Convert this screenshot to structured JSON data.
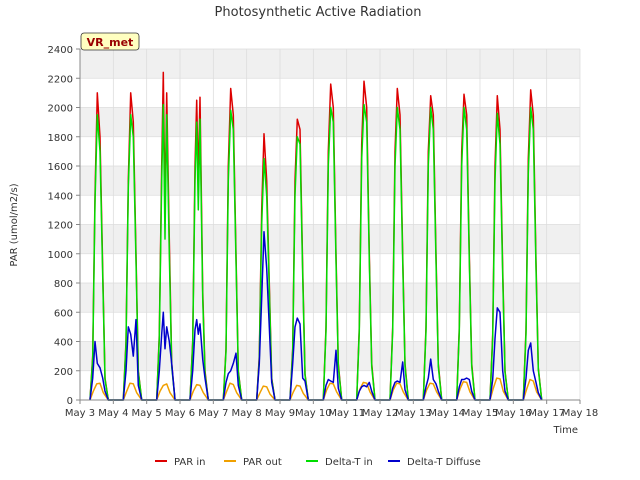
{
  "chart_data": {
    "type": "line",
    "title": "Photosynthetic Active Radiation",
    "xlabel": "Time",
    "ylabel": "PAR (umol/m2/s)",
    "site_label": "VR_met",
    "ylim": [
      0,
      2400
    ],
    "yticks": [
      0,
      200,
      400,
      600,
      800,
      1000,
      1200,
      1400,
      1600,
      1800,
      2000,
      2200,
      2400
    ],
    "xlim": [
      3,
      18
    ],
    "xticks": [
      3,
      4,
      5,
      6,
      7,
      8,
      9,
      10,
      11,
      12,
      13,
      14,
      15,
      16,
      17,
      18
    ],
    "xtick_labels": [
      "May 3",
      "May 4",
      "May 5",
      "May 6",
      "May 7",
      "May 8",
      "May 9",
      "May 10",
      "May 11",
      "May 12",
      "May 13",
      "May 14",
      "May 15",
      "May 16",
      "May 17",
      "May 18"
    ],
    "grid": true,
    "legend_position": "bottom",
    "series": [
      {
        "name": "PAR in",
        "color": "#dd0000",
        "x": [
          3.3,
          3.38,
          3.45,
          3.52,
          3.6,
          3.68,
          3.75,
          3.85,
          4.3,
          4.38,
          4.45,
          4.52,
          4.6,
          4.68,
          4.75,
          4.85,
          5.3,
          5.38,
          5.45,
          5.5,
          5.55,
          5.6,
          5.68,
          5.75,
          5.85,
          6.3,
          6.38,
          6.45,
          6.5,
          6.55,
          6.6,
          6.68,
          6.75,
          6.85,
          7.3,
          7.38,
          7.45,
          7.52,
          7.6,
          7.68,
          7.75,
          7.85,
          8.3,
          8.38,
          8.45,
          8.52,
          8.6,
          8.68,
          8.75,
          8.85,
          9.3,
          9.38,
          9.45,
          9.52,
          9.6,
          9.68,
          9.75,
          9.85,
          10.3,
          10.38,
          10.45,
          10.52,
          10.6,
          10.68,
          10.75,
          10.85,
          11.3,
          11.38,
          11.45,
          11.52,
          11.6,
          11.68,
          11.75,
          11.85,
          12.3,
          12.38,
          12.45,
          12.52,
          12.6,
          12.68,
          12.75,
          12.85,
          13.3,
          13.38,
          13.45,
          13.52,
          13.6,
          13.68,
          13.75,
          13.85,
          14.3,
          14.38,
          14.45,
          14.52,
          14.6,
          14.68,
          14.75,
          14.85,
          15.3,
          15.38,
          15.45,
          15.52,
          15.6,
          15.68,
          15.75,
          15.85,
          16.3,
          16.38,
          16.45,
          16.52,
          16.6,
          16.68,
          16.75,
          16.85
        ],
        "values": [
          0,
          300,
          1400,
          2100,
          1800,
          900,
          150,
          0,
          0,
          400,
          1500,
          2100,
          1900,
          1000,
          200,
          0,
          0,
          450,
          1600,
          2240,
          1300,
          2100,
          1100,
          250,
          0,
          0,
          400,
          1600,
          2050,
          1500,
          2070,
          750,
          200,
          0,
          0,
          350,
          1600,
          2130,
          1950,
          1000,
          200,
          0,
          0,
          300,
          1300,
          1820,
          1500,
          800,
          150,
          0,
          0,
          350,
          1500,
          1920,
          1850,
          900,
          180,
          0,
          0,
          500,
          1700,
          2160,
          2000,
          1000,
          250,
          0,
          0,
          500,
          1750,
          2180,
          2000,
          1000,
          250,
          0,
          0,
          500,
          1700,
          2130,
          1950,
          1000,
          250,
          0,
          0,
          500,
          1700,
          2080,
          1950,
          1000,
          250,
          0,
          0,
          500,
          1700,
          2090,
          1950,
          1000,
          250,
          0,
          0,
          450,
          1600,
          2080,
          1850,
          900,
          200,
          0,
          0,
          480,
          1650,
          2120,
          1950,
          950,
          220,
          0
        ]
      },
      {
        "name": "PAR out",
        "color": "#f0a000",
        "x": [
          3.3,
          3.4,
          3.5,
          3.6,
          3.7,
          3.85,
          4.3,
          4.4,
          4.5,
          4.6,
          4.7,
          4.85,
          5.3,
          5.4,
          5.5,
          5.6,
          5.7,
          5.85,
          6.3,
          6.4,
          6.5,
          6.6,
          6.7,
          6.85,
          7.3,
          7.4,
          7.5,
          7.6,
          7.7,
          7.85,
          8.3,
          8.4,
          8.5,
          8.6,
          8.7,
          8.85,
          9.3,
          9.4,
          9.5,
          9.6,
          9.7,
          9.85,
          10.3,
          10.4,
          10.5,
          10.6,
          10.7,
          10.85,
          11.3,
          11.4,
          11.5,
          11.6,
          11.7,
          11.85,
          12.3,
          12.4,
          12.5,
          12.6,
          12.7,
          12.85,
          13.3,
          13.4,
          13.5,
          13.6,
          13.7,
          13.85,
          14.3,
          14.4,
          14.5,
          14.6,
          14.7,
          14.85,
          15.3,
          15.4,
          15.5,
          15.6,
          15.7,
          15.85,
          16.3,
          16.4,
          16.5,
          16.6,
          16.7,
          16.85
        ],
        "values": [
          0,
          60,
          110,
          115,
          50,
          0,
          0,
          60,
          115,
          110,
          50,
          0,
          0,
          60,
          100,
          110,
          50,
          0,
          0,
          60,
          105,
          100,
          50,
          0,
          0,
          60,
          115,
          105,
          50,
          0,
          0,
          50,
          95,
          90,
          40,
          0,
          0,
          55,
          100,
          95,
          45,
          0,
          0,
          70,
          115,
          110,
          55,
          0,
          0,
          75,
          120,
          115,
          55,
          0,
          0,
          70,
          115,
          110,
          55,
          0,
          0,
          70,
          115,
          110,
          55,
          0,
          0,
          75,
          125,
          120,
          55,
          0,
          0,
          80,
          150,
          145,
          60,
          0,
          0,
          75,
          140,
          130,
          55,
          0
        ]
      },
      {
        "name": "Delta-T in",
        "color": "#00dd00",
        "x": [
          3.3,
          3.38,
          3.45,
          3.52,
          3.6,
          3.68,
          3.75,
          3.85,
          4.3,
          4.38,
          4.45,
          4.52,
          4.6,
          4.68,
          4.75,
          4.85,
          5.3,
          5.38,
          5.45,
          5.5,
          5.55,
          5.6,
          5.68,
          5.75,
          5.85,
          6.3,
          6.38,
          6.45,
          6.5,
          6.55,
          6.6,
          6.68,
          6.75,
          6.85,
          7.3,
          7.38,
          7.45,
          7.52,
          7.6,
          7.68,
          7.75,
          7.85,
          8.3,
          8.38,
          8.45,
          8.52,
          8.6,
          8.68,
          8.75,
          8.85,
          9.3,
          9.38,
          9.45,
          9.52,
          9.6,
          9.68,
          9.75,
          9.85,
          10.3,
          10.38,
          10.45,
          10.52,
          10.6,
          10.68,
          10.75,
          10.85,
          11.3,
          11.38,
          11.45,
          11.52,
          11.6,
          11.68,
          11.75,
          11.85,
          12.3,
          12.38,
          12.45,
          12.52,
          12.6,
          12.68,
          12.75,
          12.85,
          13.3,
          13.38,
          13.45,
          13.52,
          13.6,
          13.68,
          13.75,
          13.85,
          14.3,
          14.38,
          14.45,
          14.52,
          14.6,
          14.68,
          14.75,
          14.85,
          15.3,
          15.38,
          15.45,
          15.52,
          15.6,
          15.68,
          15.75,
          15.85,
          16.3,
          16.38,
          16.45,
          16.52,
          16.6,
          16.68,
          16.75,
          16.85
        ],
        "values": [
          0,
          280,
          1350,
          1950,
          1700,
          850,
          140,
          0,
          0,
          380,
          1450,
          1950,
          1800,
          950,
          190,
          0,
          0,
          420,
          1500,
          2020,
          1100,
          1950,
          1000,
          230,
          0,
          0,
          380,
          1500,
          1900,
          1300,
          1920,
          700,
          180,
          0,
          0,
          330,
          1500,
          1980,
          1850,
          950,
          190,
          0,
          0,
          280,
          1200,
          1650,
          1400,
          750,
          140,
          0,
          0,
          330,
          1400,
          1800,
          1750,
          850,
          170,
          0,
          0,
          470,
          1600,
          2000,
          1900,
          950,
          230,
          0,
          0,
          470,
          1650,
          2020,
          1900,
          950,
          230,
          0,
          0,
          470,
          1600,
          2000,
          1850,
          950,
          230,
          0,
          0,
          470,
          1600,
          2000,
          1850,
          950,
          230,
          0,
          0,
          470,
          1600,
          2000,
          1850,
          950,
          230,
          0,
          0,
          420,
          1500,
          1960,
          1750,
          850,
          190,
          0,
          0,
          450,
          1550,
          2000,
          1850,
          900,
          210,
          0
        ]
      },
      {
        "name": "Delta-T Diffuse",
        "color": "#0000cc",
        "x": [
          3.3,
          3.38,
          3.45,
          3.52,
          3.6,
          3.68,
          3.75,
          3.85,
          4.3,
          4.38,
          4.45,
          4.52,
          4.6,
          4.68,
          4.75,
          4.85,
          5.3,
          5.38,
          5.45,
          5.5,
          5.55,
          5.6,
          5.68,
          5.75,
          5.85,
          6.3,
          6.38,
          6.45,
          6.5,
          6.55,
          6.6,
          6.68,
          6.75,
          6.85,
          7.3,
          7.38,
          7.45,
          7.52,
          7.6,
          7.68,
          7.75,
          7.85,
          8.3,
          8.38,
          8.45,
          8.52,
          8.6,
          8.68,
          8.75,
          8.85,
          9.3,
          9.38,
          9.45,
          9.52,
          9.6,
          9.68,
          9.75,
          9.85,
          10.3,
          10.38,
          10.45,
          10.52,
          10.6,
          10.68,
          10.75,
          10.85,
          11.3,
          11.38,
          11.45,
          11.52,
          11.6,
          11.68,
          11.75,
          11.85,
          12.3,
          12.38,
          12.45,
          12.52,
          12.6,
          12.68,
          12.75,
          12.85,
          13.3,
          13.38,
          13.45,
          13.52,
          13.6,
          13.68,
          13.75,
          13.85,
          14.3,
          14.38,
          14.45,
          14.52,
          14.6,
          14.68,
          14.75,
          14.85,
          15.3,
          15.38,
          15.45,
          15.52,
          15.6,
          15.68,
          15.75,
          15.85,
          16.3,
          16.38,
          16.45,
          16.52,
          16.6,
          16.68,
          16.75,
          16.85
        ],
        "values": [
          0,
          150,
          400,
          250,
          220,
          150,
          60,
          0,
          0,
          200,
          500,
          450,
          300,
          550,
          100,
          0,
          0,
          200,
          450,
          600,
          350,
          500,
          400,
          250,
          0,
          0,
          200,
          480,
          550,
          450,
          520,
          280,
          150,
          0,
          0,
          120,
          180,
          200,
          250,
          320,
          100,
          0,
          0,
          250,
          700,
          1150,
          900,
          500,
          120,
          0,
          0,
          250,
          500,
          560,
          520,
          150,
          130,
          0,
          0,
          100,
          140,
          130,
          120,
          340,
          80,
          0,
          0,
          60,
          90,
          100,
          90,
          120,
          60,
          0,
          0,
          80,
          120,
          130,
          120,
          260,
          70,
          0,
          0,
          90,
          150,
          280,
          140,
          110,
          60,
          0,
          0,
          90,
          140,
          140,
          150,
          140,
          60,
          0,
          0,
          140,
          420,
          630,
          600,
          200,
          60,
          0,
          0,
          150,
          340,
          390,
          200,
          120,
          50,
          0
        ]
      }
    ]
  }
}
